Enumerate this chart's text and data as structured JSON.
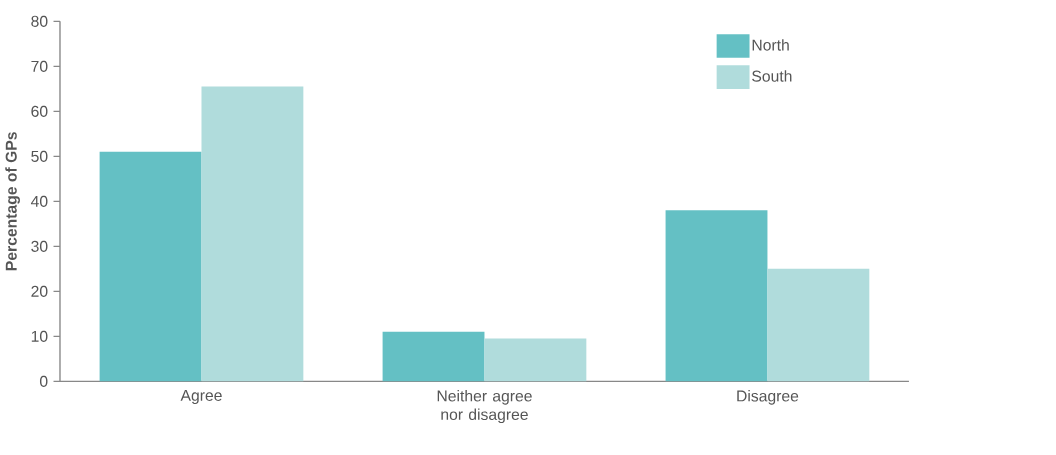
{
  "chart_data": {
    "type": "bar",
    "ylabel": "Percentage of GPs",
    "categories": [
      "Agree",
      "Neither agree nor disagree",
      "Disagree"
    ],
    "series": [
      {
        "name": "North",
        "color": "#64c0c4",
        "values": [
          51,
          11,
          38
        ]
      },
      {
        "name": "South",
        "color": "#b0dcdc",
        "values": [
          65.5,
          9.5,
          25
        ]
      }
    ],
    "ylim": [
      0,
      80
    ],
    "yticks": [
      0,
      10,
      20,
      30,
      40,
      50,
      60,
      70,
      80
    ],
    "grid": false,
    "legend": "top right"
  }
}
